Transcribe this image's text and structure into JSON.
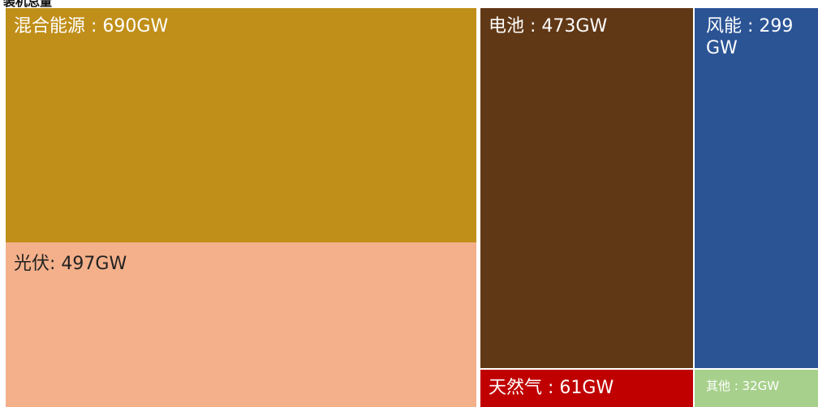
{
  "header": {
    "title": "装机总量"
  },
  "chart_data": {
    "type": "treemap",
    "unit": "GW",
    "items": [
      {
        "name": "混合能源",
        "value": 690,
        "color": "#c08f19",
        "label": "混合能源 : 690GW"
      },
      {
        "name": "光伏",
        "value": 497,
        "color": "#f4b08a",
        "label": "光伏: 497GW"
      },
      {
        "name": "电池",
        "value": 473,
        "color": "#613816",
        "label": "电池 : 473GW"
      },
      {
        "name": "风能",
        "value": 299,
        "color": "#2b5495",
        "label": "风能 : 299GW"
      },
      {
        "name": "天然气",
        "value": 61,
        "color": "#c00000",
        "label": "天然气 : 61GW"
      },
      {
        "name": "其他",
        "value": 32,
        "color": "#a7d08c",
        "label": "其他 : 32GW"
      }
    ]
  }
}
